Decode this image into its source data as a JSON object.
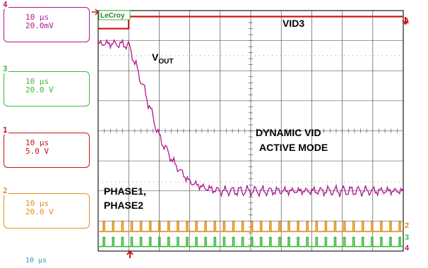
{
  "channels": [
    {
      "number": "4",
      "color": "#b0168c",
      "timebase": "10 µs",
      "scale": "20.0mV"
    },
    {
      "number": "3",
      "color": "#3cb83c",
      "timebase": "10 µs",
      "scale": "20.0 V"
    },
    {
      "number": "1",
      "color": "#c81414",
      "timebase": "10 µs",
      "scale": "5.0 V"
    },
    {
      "number": "2",
      "color": "#e0901a",
      "timebase": "10 µs",
      "scale": "20.0 V"
    }
  ],
  "timebase_readout": "10 µs",
  "brand": "LeCroy",
  "chart_data": {
    "type": "line",
    "title": "",
    "xlabel": "",
    "ylabel": "",
    "divisions": {
      "x": 10,
      "y": 8
    },
    "x": [
      0,
      0.5,
      1,
      1.5,
      2,
      2.5,
      3,
      3.5,
      4,
      4.5,
      5,
      5.5,
      6,
      6.5,
      7,
      7.5,
      8,
      8.5,
      9,
      9.5,
      10
    ],
    "series": [
      {
        "name": "VID3",
        "channel": "1",
        "color": "#c81414",
        "values": [
          7.4,
          7.4,
          7.8,
          7.8,
          7.8,
          7.8,
          7.8,
          7.8,
          7.8,
          7.8,
          7.8,
          7.8,
          7.8,
          7.8,
          7.8,
          7.8,
          7.8,
          7.8,
          7.8,
          7.8,
          7.8
        ]
      },
      {
        "name": "VOUT",
        "channel": "4",
        "color": "#b0168c",
        "values": [
          6.9,
          6.9,
          6.85,
          5.4,
          3.8,
          2.9,
          2.3,
          2.1,
          2.0,
          2.0,
          2.0,
          2.0,
          2.0,
          2.0,
          2.0,
          2.0,
          2.0,
          2.0,
          2.0,
          2.0,
          2.0
        ]
      },
      {
        "name": "PHASE1",
        "channel": "2",
        "color": "#e0901a",
        "values": [
          0.65,
          0.65,
          0.65,
          0.65,
          0.65,
          0.65,
          0.65,
          0.65,
          0.65,
          0.65,
          0.65,
          0.65,
          0.65,
          0.65,
          0.65,
          0.65,
          0.65,
          0.65,
          0.65,
          0.65,
          0.65
        ]
      },
      {
        "name": "PHASE2",
        "channel": "3",
        "color": "#3cb83c",
        "values": [
          0.15,
          0.15,
          0.15,
          0.15,
          0.15,
          0.15,
          0.15,
          0.15,
          0.15,
          0.15,
          0.15,
          0.15,
          0.15,
          0.15,
          0.15,
          0.15,
          0.15,
          0.15,
          0.15,
          0.15,
          0.15
        ]
      }
    ],
    "annotations": [
      {
        "text": "VID3"
      },
      {
        "text": "V",
        "subscript": "OUT"
      },
      {
        "text": "DYNAMIC VID"
      },
      {
        "text": "ACTIVE MODE"
      },
      {
        "text": "PHASE1,"
      },
      {
        "text": "PHASE2"
      }
    ],
    "grid": true
  }
}
